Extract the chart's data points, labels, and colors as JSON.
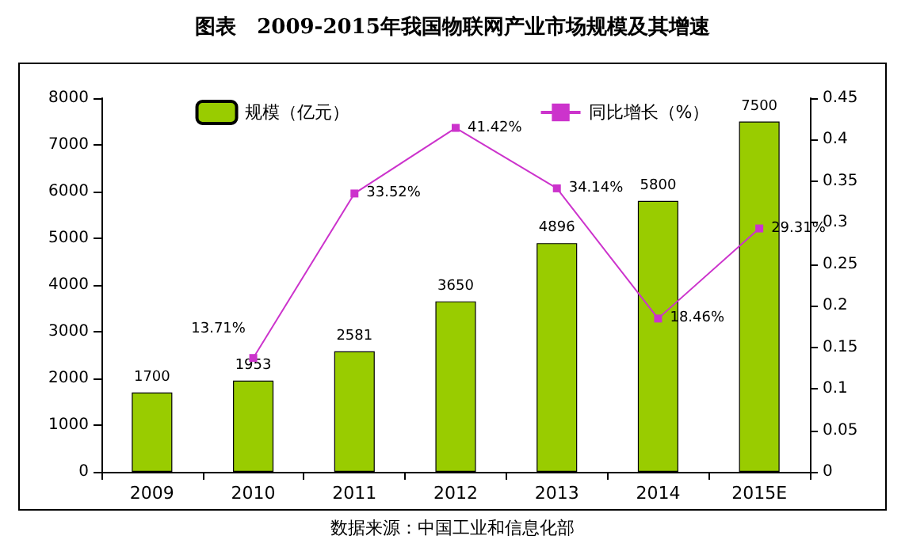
{
  "chart_data": {
    "type": "bar",
    "title": "图表　2009-2015年我国物联网产业市场规模及其增速",
    "categories": [
      "2009",
      "2010",
      "2011",
      "2012",
      "2013",
      "2014",
      "2015E"
    ],
    "series": [
      {
        "name": "规模（亿元）",
        "color": "#99cc00",
        "values": [
          1700,
          1953,
          2581,
          3650,
          4896,
          5800,
          7500
        ],
        "value_labels": [
          "1700",
          "1953",
          "2581",
          "3650",
          "4896",
          "5800",
          "7500"
        ]
      },
      {
        "name": "同比增长（%）",
        "type": "line",
        "axis": "y2",
        "color": "#cc33cc",
        "marker": "square",
        "values": [
          null,
          0.1371,
          0.3352,
          0.4142,
          0.3414,
          0.1846,
          0.2931
        ],
        "value_labels": [
          null,
          "13.71%",
          "33.52%",
          "41.42%",
          "34.14%",
          "18.46%",
          "29.31%"
        ]
      }
    ],
    "ylim": [
      0,
      8000
    ],
    "yticks": [
      0,
      1000,
      2000,
      3000,
      4000,
      5000,
      6000,
      7000,
      8000
    ],
    "y2lim": [
      0,
      0.45
    ],
    "y2ticks": [
      0,
      0.05,
      0.1,
      0.15,
      0.2,
      0.25,
      0.3,
      0.35,
      0.4,
      0.45
    ],
    "legend": "top",
    "grid": false,
    "annotations": [
      "数据来源：中国工业和信息化部"
    ]
  }
}
